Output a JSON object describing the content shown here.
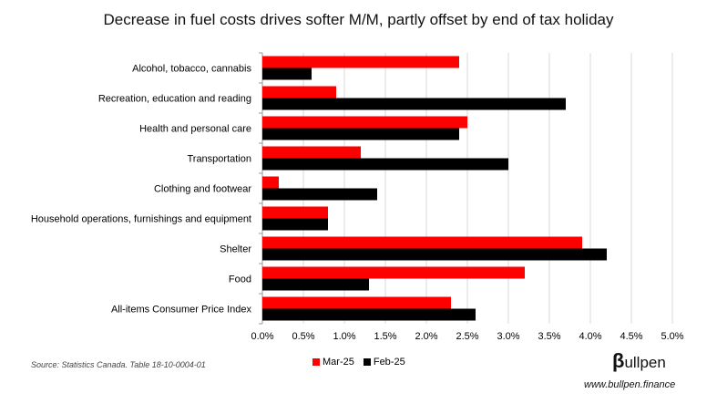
{
  "title": "Decrease in fuel costs drives softer M/M, partly offset by end of tax holiday",
  "source": "Source: Statistics Canada. Table 18-10-0004-01",
  "brand": {
    "symbol": "β",
    "name": "ullpen"
  },
  "site": "www.bullpen.finance",
  "colors": {
    "mar25": "#ff0000",
    "feb25": "#000000",
    "grid": "#d9d9d9"
  },
  "chart_data": {
    "type": "bar",
    "orientation": "horizontal",
    "categories": [
      "Alcohol, tobacco, cannabis",
      "Recreation, education and reading",
      "Health and personal care",
      "Transportation",
      "Clothing and footwear",
      "Household operations, furnishings and equipment",
      "Shelter",
      "Food",
      "All-items Consumer Price Index"
    ],
    "series": [
      {
        "name": "Mar-25",
        "values": [
          2.4,
          0.9,
          2.5,
          1.2,
          0.2,
          0.8,
          3.9,
          3.2,
          2.3
        ]
      },
      {
        "name": "Feb-25",
        "values": [
          0.6,
          3.7,
          2.4,
          3.0,
          1.4,
          0.8,
          4.2,
          1.3,
          2.6
        ]
      }
    ],
    "xlim": [
      0,
      5.0
    ],
    "xticks": [
      "0.0%",
      "0.5%",
      "1.0%",
      "1.5%",
      "2.0%",
      "2.5%",
      "3.0%",
      "3.5%",
      "4.0%",
      "4.5%",
      "5.0%"
    ],
    "grid": true,
    "legend_position": "bottom"
  }
}
